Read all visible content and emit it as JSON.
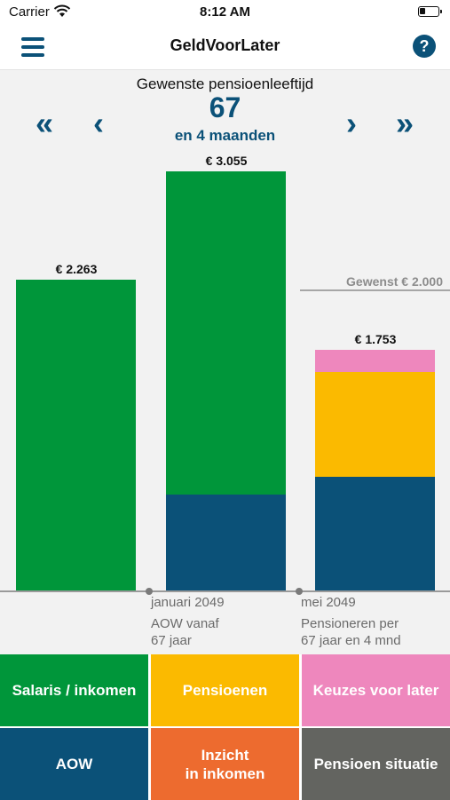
{
  "status_bar": {
    "carrier": "Carrier",
    "time": "8:12 AM"
  },
  "nav": {
    "title": "GeldVoorLater",
    "help": "?"
  },
  "age_selector": {
    "caption": "Gewenste pensioenleeftijd",
    "years": "67",
    "months_text": "en 4 maanden",
    "arrows": {
      "first": "«",
      "prev": "‹",
      "next": "›",
      "last": "»"
    }
  },
  "chart_data": {
    "type": "bar",
    "stacked": true,
    "currency": "€",
    "categories": [
      "",
      "januari 2049",
      "mei 2049"
    ],
    "category_notes": [
      "",
      "AOW vanaf 67 jaar",
      "Pensioneren per 67 jaar en 4 mnd"
    ],
    "totals": [
      2263,
      3055,
      1753
    ],
    "total_labels": [
      "€ 2.263",
      "€ 3.055",
      "€ 1.753"
    ],
    "segments": [
      [
        {
          "color": "#00963a",
          "value": 2263
        }
      ],
      [
        {
          "color": "#0b5178",
          "value": 700
        },
        {
          "color": "#00963a",
          "value": 2355
        }
      ],
      [
        {
          "color": "#0b5178",
          "value": 830
        },
        {
          "color": "#fbba00",
          "value": 760
        },
        {
          "color": "#ee87bd",
          "value": 163
        }
      ]
    ],
    "desired_line": {
      "value": 2000,
      "label": "Gewenst € 2.000"
    },
    "ymax": 3055
  },
  "axis": {
    "col2_date": "januari 2049",
    "col2_note1": "AOW vanaf",
    "col2_note2": "67 jaar",
    "col3_date": "mei 2049",
    "col3_note1": "Pensioneren per",
    "col3_note2": "67 jaar en 4 mnd"
  },
  "tiles": [
    {
      "label": "Salaris / inkomen",
      "color": "#00963a"
    },
    {
      "label": "Pensioenen",
      "color": "#fbba00"
    },
    {
      "label": "Keuzes voor later",
      "color": "#ee87bd"
    },
    {
      "label": "AOW",
      "color": "#0b5178"
    },
    {
      "label": "Inzicht\nin inkomen",
      "color": "#ed6b2f"
    },
    {
      "label": "Pensioen situatie",
      "color": "#636460"
    }
  ]
}
